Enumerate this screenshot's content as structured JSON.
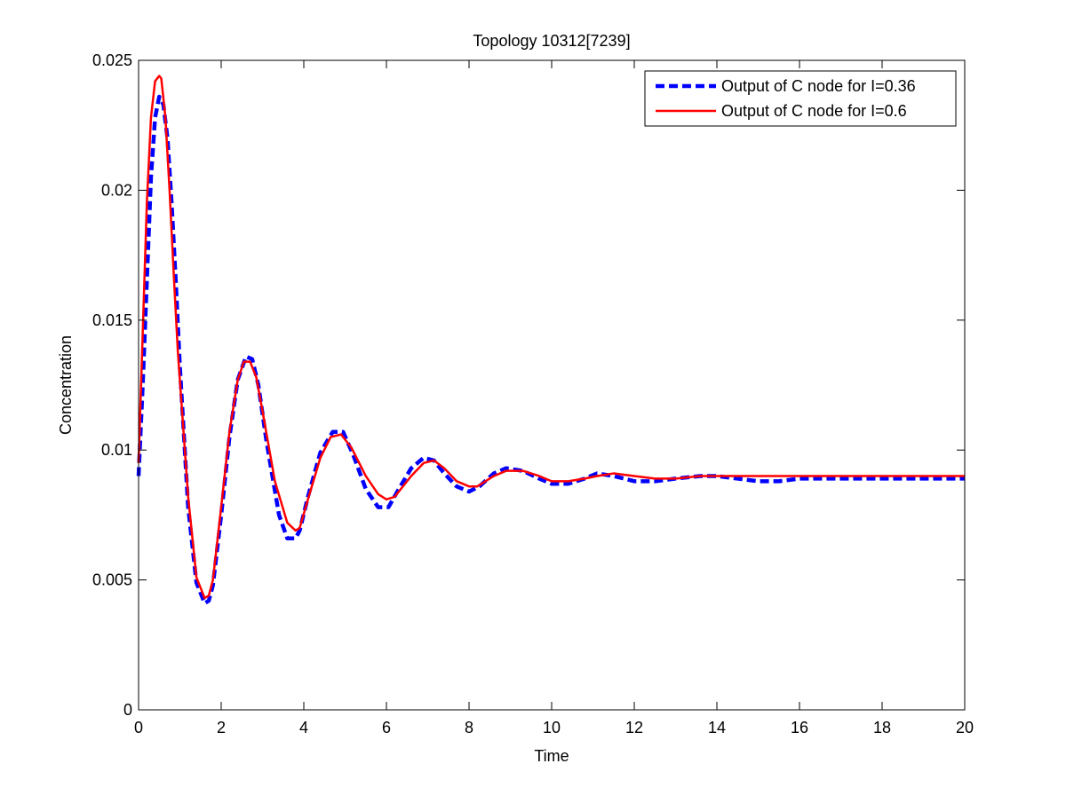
{
  "chart_data": {
    "type": "line",
    "title": "Topology 10312[7239]",
    "xlabel": "Time",
    "ylabel": "Concentration",
    "xlim": [
      0,
      20
    ],
    "ylim": [
      0,
      0.025
    ],
    "xticks": [
      0,
      2,
      4,
      6,
      8,
      10,
      12,
      14,
      16,
      18,
      20
    ],
    "xtick_labels": [
      "0",
      "2",
      "4",
      "6",
      "8",
      "10",
      "12",
      "14",
      "16",
      "18",
      "20"
    ],
    "yticks": [
      0,
      0.005,
      0.01,
      0.015,
      0.02,
      0.025
    ],
    "ytick_labels": [
      "0",
      "0.005",
      "0.01",
      "0.015",
      "0.02",
      "0.025"
    ],
    "grid": false,
    "legend_position": "top-right",
    "series": [
      {
        "name": "Output of C node for I=0.36",
        "color": "#0000ff",
        "line_style": "dashed",
        "x": [
          0,
          0.1,
          0.2,
          0.3,
          0.4,
          0.5,
          0.6,
          0.7,
          0.8,
          0.9,
          1.0,
          1.2,
          1.4,
          1.6,
          1.7,
          1.8,
          2.0,
          2.2,
          2.4,
          2.6,
          2.75,
          2.9,
          3.1,
          3.4,
          3.6,
          3.8,
          3.9,
          4.1,
          4.4,
          4.7,
          4.95,
          5.2,
          5.5,
          5.8,
          6.05,
          6.3,
          6.6,
          6.9,
          7.15,
          7.4,
          7.7,
          8.0,
          8.25,
          8.6,
          8.9,
          9.3,
          9.7,
          10.0,
          10.4,
          10.8,
          11.1,
          11.5,
          12.0,
          12.5,
          13.0,
          13.6,
          14.0,
          14.5,
          15.0,
          15.5,
          16,
          17,
          18,
          19,
          20
        ],
        "y": [
          0.009,
          0.0125,
          0.0165,
          0.0205,
          0.0228,
          0.0236,
          0.0233,
          0.022,
          0.0195,
          0.0165,
          0.0132,
          0.0078,
          0.0049,
          0.0041,
          0.0042,
          0.0048,
          0.0075,
          0.0105,
          0.0127,
          0.0136,
          0.0135,
          0.0125,
          0.0103,
          0.0075,
          0.0066,
          0.0066,
          0.0069,
          0.0082,
          0.0099,
          0.0107,
          0.0107,
          0.0098,
          0.0085,
          0.0078,
          0.0078,
          0.0085,
          0.0093,
          0.0097,
          0.0096,
          0.0091,
          0.0086,
          0.0084,
          0.0086,
          0.0091,
          0.0093,
          0.0092,
          0.0089,
          0.0087,
          0.0087,
          0.0089,
          0.0091,
          0.009,
          0.0088,
          0.0088,
          0.0089,
          0.009,
          0.009,
          0.0089,
          0.0088,
          0.0088,
          0.0089,
          0.0089,
          0.0089,
          0.0089,
          0.0089
        ]
      },
      {
        "name": "Output of C node for I=0.6",
        "color": "#ff0000",
        "line_style": "solid",
        "x": [
          0,
          0.1,
          0.2,
          0.3,
          0.4,
          0.5,
          0.55,
          0.65,
          0.75,
          0.85,
          0.95,
          1.2,
          1.4,
          1.6,
          1.7,
          1.8,
          2.0,
          2.2,
          2.4,
          2.55,
          2.7,
          2.85,
          3.0,
          3.3,
          3.6,
          3.8,
          3.9,
          4.1,
          4.4,
          4.65,
          4.9,
          5.15,
          5.5,
          5.8,
          6.0,
          6.2,
          6.6,
          6.9,
          7.15,
          7.4,
          7.7,
          8.0,
          8.2,
          8.6,
          8.9,
          9.3,
          9.7,
          10.0,
          10.4,
          10.8,
          11.1,
          11.5,
          12.0,
          12.5,
          13.0,
          13.6,
          14.0,
          14.5,
          15.0,
          15.5,
          16,
          17,
          18,
          19,
          20
        ],
        "y": [
          0.0095,
          0.0145,
          0.0195,
          0.0228,
          0.0242,
          0.0244,
          0.0243,
          0.0228,
          0.02,
          0.0168,
          0.0138,
          0.0082,
          0.0051,
          0.0043,
          0.0044,
          0.005,
          0.0078,
          0.0107,
          0.0127,
          0.0134,
          0.0134,
          0.0128,
          0.0115,
          0.0088,
          0.0072,
          0.0069,
          0.007,
          0.0081,
          0.0097,
          0.0105,
          0.0106,
          0.0101,
          0.009,
          0.0083,
          0.0081,
          0.0082,
          0.009,
          0.0095,
          0.0096,
          0.0093,
          0.0088,
          0.0086,
          0.0086,
          0.009,
          0.0092,
          0.0092,
          0.009,
          0.0088,
          0.0088,
          0.0089,
          0.009,
          0.0091,
          0.009,
          0.0089,
          0.0089,
          0.009,
          0.009,
          0.009,
          0.009,
          0.009,
          0.009,
          0.009,
          0.009,
          0.009,
          0.009
        ]
      }
    ]
  }
}
